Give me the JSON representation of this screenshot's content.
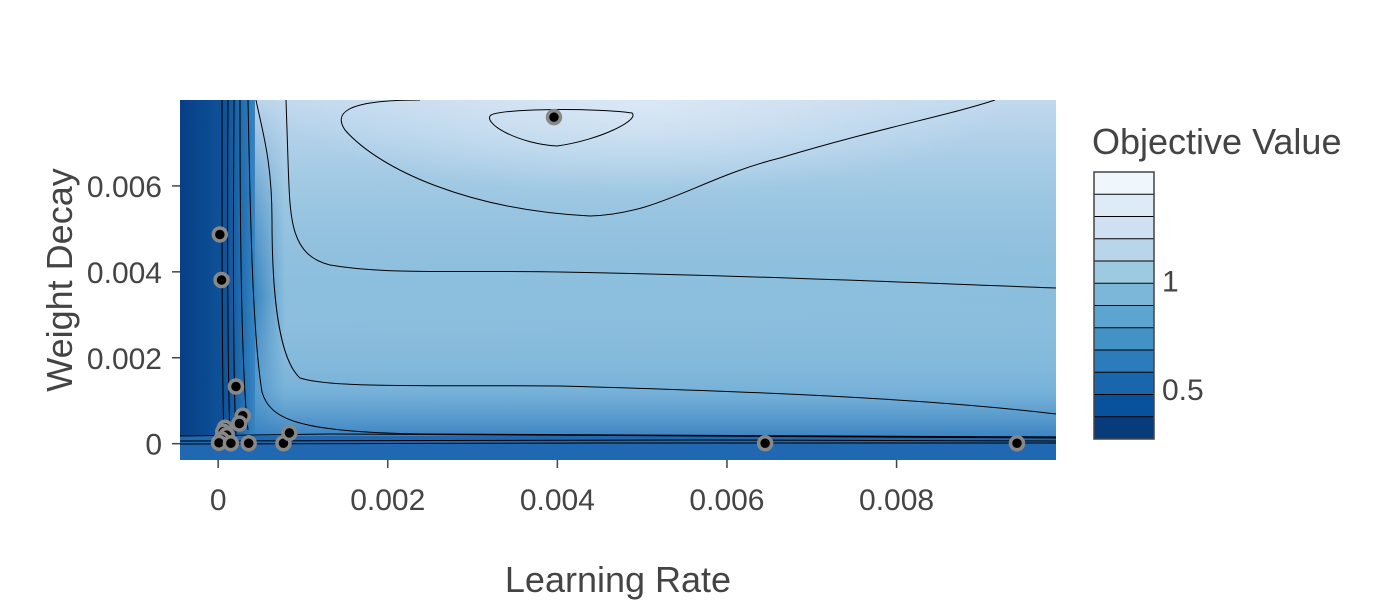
{
  "chart_data": {
    "type": "contour",
    "title": "",
    "xlabel": "Learning Rate",
    "ylabel": "Weight Decay",
    "xlim": [
      -0.00045,
      0.00988
    ],
    "ylim": [
      -0.00038,
      0.008
    ],
    "x_ticks": [
      {
        "value": 0,
        "label": "0"
      },
      {
        "value": 0.002,
        "label": "0.002"
      },
      {
        "value": 0.004,
        "label": "0.004"
      },
      {
        "value": 0.006,
        "label": "0.006"
      },
      {
        "value": 0.008,
        "label": "0.008"
      }
    ],
    "y_ticks": [
      {
        "value": 0,
        "label": "0"
      },
      {
        "value": 0.002,
        "label": "0.002"
      },
      {
        "value": 0.004,
        "label": "0.004"
      },
      {
        "value": 0.006,
        "label": "0.006"
      }
    ],
    "colorbar": {
      "title": "Objective Value",
      "range": [
        0.27,
        1.5
      ],
      "ticks": [
        {
          "value": 0.5,
          "label": "0.5"
        },
        {
          "value": 1,
          "label": "1"
        }
      ],
      "colorscale": [
        "#08306b",
        "#08519c",
        "#2171b5",
        "#4292c6",
        "#6baed6",
        "#9ecae1",
        "#c6dbef",
        "#deebf7",
        "#f7fbff"
      ]
    },
    "trials": [
      {
        "x": 0.00396,
        "y": 0.0076
      },
      {
        "x": 2e-05,
        "y": 0.00487
      },
      {
        "x": 4e-05,
        "y": 0.00381
      },
      {
        "x": 0.00021,
        "y": 0.00133
      },
      {
        "x": 0.00029,
        "y": 0.00065
      },
      {
        "x": 0.00025,
        "y": 0.00047
      },
      {
        "x": 8e-05,
        "y": 0.00037
      },
      {
        "x": 6e-05,
        "y": 0.00028
      },
      {
        "x": 0.0001,
        "y": 0.0002
      },
      {
        "x": 4e-05,
        "y": 0.0001
      },
      {
        "x": 1e-05,
        "y": 2e-05
      },
      {
        "x": 0.00015,
        "y": 1e-05
      },
      {
        "x": 0.00036,
        "y": 1e-05
      },
      {
        "x": 0.00077,
        "y": 1e-05
      },
      {
        "x": 0.00084,
        "y": 0.00025
      },
      {
        "x": 0.00645,
        "y": 1e-05
      },
      {
        "x": 0.00942,
        "y": 1e-05
      }
    ]
  }
}
